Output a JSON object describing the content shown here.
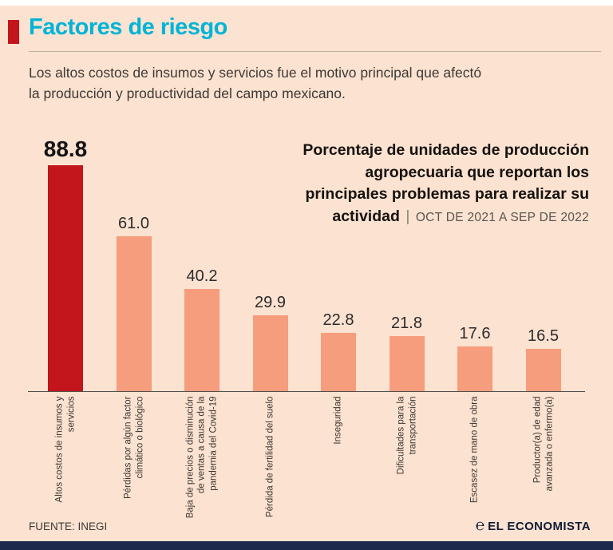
{
  "header": {
    "title": "Factores de riesgo",
    "subtitle_lines": [
      "Los altos costos de insumos y servicios fue el motivo principal que afectó",
      "la producción y productividad del campo mexicano."
    ]
  },
  "chart_title": {
    "lines": [
      "Porcentaje de unidades de producción",
      "agropecuaria que reportan los",
      "principales problemas para realizar su"
    ],
    "last_line": "actividad",
    "separator": "|",
    "period": "OCT DE 2021 A SEP DE 2022"
  },
  "chart_data": {
    "type": "bar",
    "title": "Porcentaje de unidades de producción agropecuaria que reportan los principales problemas para realizar su actividad",
    "period": "OCT DE 2021 A SEP DE 2022",
    "unit": "percent",
    "categories": [
      "Altos costos de insumos y servicios",
      "Pérdidas por algún factor climático o biológico",
      "Baja de precios o disminución de ventas a causa de la pandemia del Covid-19",
      "Pérdida de fertilidad del suelo",
      "Inseguridad",
      "Dificultades para la transportación",
      "Escasez de mano de obra",
      "Productor(a) de edad avanzada o enfermo(a)"
    ],
    "values": [
      88.8,
      61.0,
      40.2,
      29.9,
      22.8,
      21.8,
      17.6,
      16.5
    ],
    "value_labels": [
      "88.8",
      "61.0",
      "40.2",
      "29.9",
      "22.8",
      "21.8",
      "17.6",
      "16.5"
    ],
    "highlight_index": 0,
    "bar_colors": {
      "highlight": "#c3151c",
      "default": "#f59d7c"
    },
    "ylim": [
      0,
      100
    ],
    "grid": false,
    "legend": false
  },
  "footer": {
    "source": "FUENTE: INEGI",
    "logo_symbol": "℮",
    "logo": "EL ECONOMISTA"
  },
  "colors": {
    "background": "#fce2d0",
    "title_cyan": "#00b4d8",
    "accent_red": "#c3151c",
    "bar_salmon": "#f59d7c",
    "bottom_bar_navy": "#1c2b4d"
  }
}
